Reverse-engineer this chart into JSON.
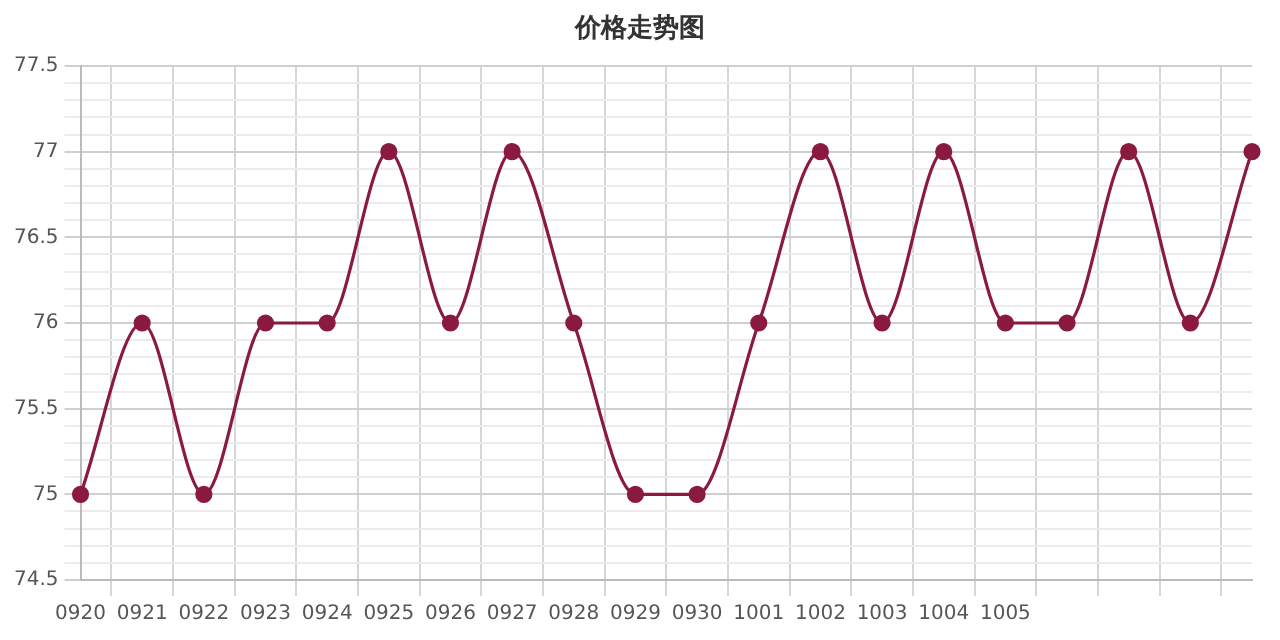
{
  "chart_data": {
    "type": "line",
    "title": "价格走势图",
    "categories": [
      "0920",
      "0921",
      "0922",
      "0923",
      "0924",
      "0925",
      "0926",
      "0927",
      "0928",
      "0929",
      "0930",
      "1001",
      "1002",
      "1003",
      "1004",
      "1005",
      null,
      null,
      null,
      null
    ],
    "series": [
      {
        "color": "#8b1a3f",
        "values": [
          75,
          76,
          75,
          76,
          76,
          77,
          76,
          77,
          76,
          75,
          75,
          76,
          77,
          76,
          77,
          76,
          76,
          77,
          76,
          77
        ]
      }
    ],
    "ylim": [
      74.5,
      77.5
    ],
    "yticks": [
      74.5,
      {
        "value": 74.6,
        "label": null
      },
      {
        "value": 74.7,
        "label": null
      },
      {
        "value": 74.8,
        "label": null
      },
      {
        "value": 74.9,
        "label": null
      },
      75,
      {
        "value": 75.1,
        "label": null
      },
      {
        "value": 75.2,
        "label": null
      },
      {
        "value": 75.3,
        "label": null
      },
      {
        "value": 75.4,
        "label": null
      },
      75.5,
      {
        "value": 75.6,
        "label": null
      },
      {
        "value": 75.7,
        "label": null
      },
      {
        "value": 75.8,
        "label": null
      },
      {
        "value": 75.9,
        "label": null
      },
      76,
      {
        "value": 76.1,
        "label": null
      },
      {
        "value": 76.2,
        "label": null
      },
      {
        "value": 76.3,
        "label": null
      },
      {
        "value": 76.4,
        "label": null
      },
      76.5,
      {
        "value": 76.6,
        "label": null
      },
      {
        "value": 76.7,
        "label": null
      },
      {
        "value": 76.8,
        "label": null
      },
      {
        "value": 76.9,
        "label": null
      },
      77,
      {
        "value": 77.1,
        "label": null
      },
      {
        "value": 77.2,
        "label": null
      },
      {
        "value": 77.3,
        "label": null
      },
      {
        "value": 77.4,
        "label": null
      },
      77.5
    ],
    "grid": true,
    "marker": "circle",
    "line_style": "solid",
    "legend": false
  }
}
